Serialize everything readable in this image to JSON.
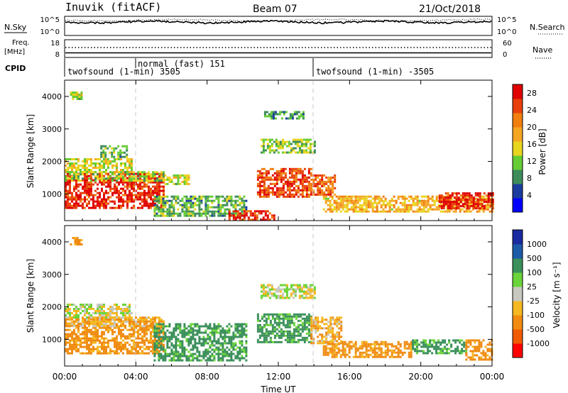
{
  "header": {
    "station": "Inuvik (fitACF)",
    "beam": "Beam 07",
    "date": "21/Oct/2018"
  },
  "labels": {
    "n_sky": "N.Sky",
    "n_search": "N.Search",
    "freq_line1": "Freq.",
    "freq_line2": "[MHz]",
    "nave": "Nave",
    "cpid": "CPID",
    "n_sky_ticks": [
      "10^5",
      "10^0"
    ],
    "n_search_ticks": [
      "10^5",
      "10^0"
    ],
    "freq_ticks": [
      "18",
      "8"
    ],
    "nave_ticks": [
      "60",
      "0"
    ]
  },
  "cpid_segments": [
    {
      "label": "twofsound (1-min) 3505",
      "start_hour": 0,
      "end_hour": 4
    },
    {
      "label": "normal (fast)  151",
      "start_hour": 4,
      "end_hour": 14
    },
    {
      "label": "twofsound (1-min) -3505",
      "start_hour": 14,
      "end_hour": 24
    }
  ],
  "colors": {
    "power_scale": [
      "#0000ff",
      "#1a3c9e",
      "#3d8c5a",
      "#66cc33",
      "#e8d51e",
      "#f5a623",
      "#f07f0d",
      "#e8400c",
      "#e00000"
    ],
    "velocity_scale": [
      "#ff0000",
      "#f05a00",
      "#f08a10",
      "#f5b820",
      "#c8c8c0",
      "#6bd43a",
      "#3a8f5a",
      "#1d5aa8",
      "#1a2aa0"
    ],
    "guide_line": "#c8c8c8"
  },
  "chart_data": [
    {
      "type": "heatmap",
      "title": "Power",
      "xlabel": "Time UT",
      "ylabel": "Slant Range [km]",
      "xlim": [
        0,
        24
      ],
      "ylim": [
        180,
        4500
      ],
      "x_ticks": [
        "00:00",
        "04:00",
        "08:00",
        "12:00",
        "16:00",
        "20:00",
        "00:00"
      ],
      "y_ticks": [
        1000,
        2000,
        3000,
        4000
      ],
      "colorbar": {
        "label": "Power [dB]",
        "ticks": [
          4,
          8,
          12,
          16,
          20,
          24,
          28
        ],
        "range": [
          0,
          30
        ]
      },
      "regions": [
        {
          "hours": [
            0.0,
            5.6
          ],
          "range_km": [
            600,
            1650
          ],
          "value": 28
        },
        {
          "hours": [
            0.0,
            5.6
          ],
          "range_km": [
            1400,
            1700
          ],
          "value": 12
        },
        {
          "hours": [
            0.0,
            3.8
          ],
          "range_km": [
            1700,
            2100
          ],
          "value": 14
        },
        {
          "hours": [
            2.0,
            3.5
          ],
          "range_km": [
            2150,
            2500
          ],
          "value": 10
        },
        {
          "hours": [
            5.6,
            7.0
          ],
          "range_km": [
            1300,
            1600
          ],
          "value": 14
        },
        {
          "hours": [
            5.0,
            10.2
          ],
          "range_km": [
            350,
            950
          ],
          "value": 10
        },
        {
          "hours": [
            10.8,
            13.8
          ],
          "range_km": [
            900,
            1800
          ],
          "value": 26
        },
        {
          "hours": [
            9.2,
            11.8
          ],
          "range_km": [
            200,
            500
          ],
          "value": 28
        },
        {
          "hours": [
            13.8,
            15.2
          ],
          "range_km": [
            1000,
            1600
          ],
          "value": 24
        },
        {
          "hours": [
            14.5,
            24.0
          ],
          "range_km": [
            450,
            950
          ],
          "value": 18
        },
        {
          "hours": [
            21.0,
            24.0
          ],
          "range_km": [
            550,
            1050
          ],
          "value": 28
        },
        {
          "hours": [
            11.0,
            14.0
          ],
          "range_km": [
            2300,
            2700
          ],
          "value": 12
        },
        {
          "hours": [
            11.2,
            13.4
          ],
          "range_km": [
            3350,
            3550
          ],
          "value": 8
        },
        {
          "hours": [
            0.3,
            1.0
          ],
          "range_km": [
            3900,
            4150
          ],
          "value": 14
        }
      ]
    },
    {
      "type": "heatmap",
      "title": "Velocity",
      "xlabel": "Time UT",
      "ylabel": "Slant Range [km]",
      "xlim": [
        0,
        24
      ],
      "ylim": [
        180,
        4500
      ],
      "x_ticks": [
        "00:00",
        "04:00",
        "08:00",
        "12:00",
        "16:00",
        "20:00",
        "00:00"
      ],
      "y_ticks": [
        1000,
        2000,
        3000,
        4000
      ],
      "colorbar": {
        "label": "Velocity [m s⁻¹]",
        "ticks": [
          "1000",
          "500",
          "100",
          "25",
          "-25",
          "-100",
          "-500",
          "-1000"
        ]
      },
      "regions": [
        {
          "hours": [
            0.0,
            5.6
          ],
          "range_km": [
            600,
            1650
          ],
          "value": -150
        },
        {
          "hours": [
            0.0,
            5.6
          ],
          "range_km": [
            1400,
            1700
          ],
          "value": -80
        },
        {
          "hours": [
            0.0,
            3.8
          ],
          "range_km": [
            1700,
            2100
          ],
          "value": 0
        },
        {
          "hours": [
            5.0,
            10.2
          ],
          "range_km": [
            350,
            1500
          ],
          "value": 150
        },
        {
          "hours": [
            10.8,
            13.8
          ],
          "range_km": [
            900,
            1800
          ],
          "value": 150
        },
        {
          "hours": [
            13.8,
            15.5
          ],
          "range_km": [
            900,
            1700
          ],
          "value": -80
        },
        {
          "hours": [
            14.5,
            19.5
          ],
          "range_km": [
            450,
            950
          ],
          "value": -150
        },
        {
          "hours": [
            19.5,
            22.5
          ],
          "range_km": [
            600,
            1000
          ],
          "value": 150
        },
        {
          "hours": [
            22.5,
            24.0
          ],
          "range_km": [
            400,
            1000
          ],
          "value": -150
        },
        {
          "hours": [
            11.0,
            14.0
          ],
          "range_km": [
            2300,
            2700
          ],
          "value": 0
        },
        {
          "hours": [
            0.3,
            1.0
          ],
          "range_km": [
            3900,
            4150
          ],
          "value": -150
        }
      ]
    }
  ]
}
